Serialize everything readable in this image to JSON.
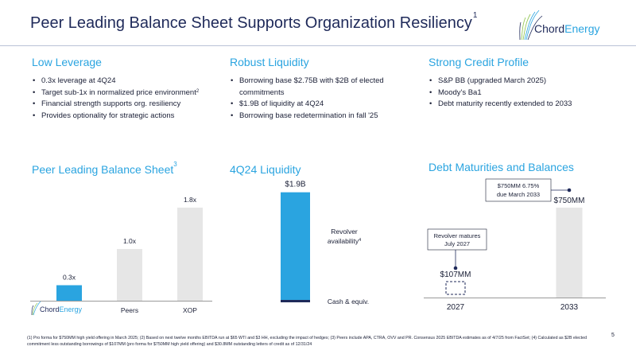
{
  "header": {
    "title": "Peer Leading Balance Sheet Supports Organization Resiliency",
    "title_sup": "1",
    "logo_word1": "Chord",
    "logo_word2": "Energy"
  },
  "sections": {
    "leverage": {
      "heading": "Low Leverage",
      "bullets": [
        "0.3x leverage at 4Q24",
        "Target sub-1x in normalized price environment",
        "Financial strength supports org. resiliency",
        "Provides optionality for strategic actions"
      ],
      "bullet2_sup": "2"
    },
    "liquidity": {
      "heading": "Robust Liquidity",
      "bullets": [
        "Borrowing base $2.75B with $2B of elected commitments",
        "$1.9B of liquidity at 4Q24",
        "Borrowing base redetermination in fall '25"
      ]
    },
    "credit": {
      "heading": "Strong Credit Profile",
      "bullets": [
        "S&P BB (upgraded March 2025)",
        "Moody's Ba1",
        "Debt maturity recently extended to 2033"
      ]
    }
  },
  "charts": {
    "peer": {
      "heading": "Peer Leading Balance Sheet",
      "heading_sup": "3",
      "logo_word1": "Chord",
      "logo_word2": "Energy"
    },
    "liquidity": {
      "heading": "4Q24 Liquidity",
      "total_label": "$1.9B",
      "revolver_label_line1": "Revolver",
      "revolver_label_line2": "availability",
      "revolver_sup": "4",
      "cash_label": "Cash & equiv."
    },
    "debt": {
      "heading": "Debt Maturities and Balances",
      "callout_2033_line1": "$750MM 6.75%",
      "callout_2033_line2": "due March 2033",
      "callout_2027_line1": "Revolver matures",
      "callout_2027_line2": "July 2027"
    }
  },
  "chart_data": [
    {
      "type": "bar",
      "categories": [
        "Chord Energy",
        "Peers",
        "XOP"
      ],
      "values": [
        0.3,
        1.0,
        1.8
      ],
      "value_labels": [
        "0.3x",
        "1.0x",
        "1.8x"
      ],
      "title": "Peer Leading Balance Sheet",
      "xlabel": "",
      "ylabel": "",
      "ylim": [
        0,
        2.0
      ],
      "colors": [
        "#2aa4e0",
        "#e6e6e6",
        "#e6e6e6"
      ],
      "grid": false
    },
    {
      "type": "bar",
      "categories": [
        "4Q24"
      ],
      "series": [
        {
          "name": "Cash & equiv.",
          "values": [
            0.037
          ]
        },
        {
          "name": "Revolver availability",
          "values": [
            1.863
          ]
        }
      ],
      "stacked": true,
      "total_label": "$1.9B",
      "title": "4Q24 Liquidity",
      "ylim": [
        0,
        1.9
      ],
      "colors": [
        "#1f2a5a",
        "#2aa4e0"
      ],
      "grid": false
    },
    {
      "type": "bar",
      "categories": [
        "2027",
        "2033"
      ],
      "values": [
        107,
        750
      ],
      "value_labels": [
        "$107MM",
        "$750MM"
      ],
      "title": "Debt Maturities and Balances",
      "ylim": [
        0,
        750
      ],
      "colors": [
        "#1f2a5a",
        "#e6e6e6"
      ],
      "grid": false
    }
  ],
  "footnote": "(1) Pro forma for $750MM high yield offering in March 2025; (2) Based on next twelve months EBITDA run at $65 WTI and $3 HH, excluding the impact of hedges; (3) Peers include APA, CTRA, OVV and PR. Consensus 2025 EBITDA estimates as of 4/7/25 from FactSet; (4) Calculated as $2B elected commitment less outstanding borrowings of $107MM (pro forma for $750MM high yield offering) and $30.8MM outstanding letters of credit as of 12/31/24",
  "page_number": "5",
  "colors": {
    "accent": "#2aa4e0",
    "navy": "#1f2a5a",
    "bar_gray": "#e6e6e6",
    "rule": "#b9c3d6"
  }
}
